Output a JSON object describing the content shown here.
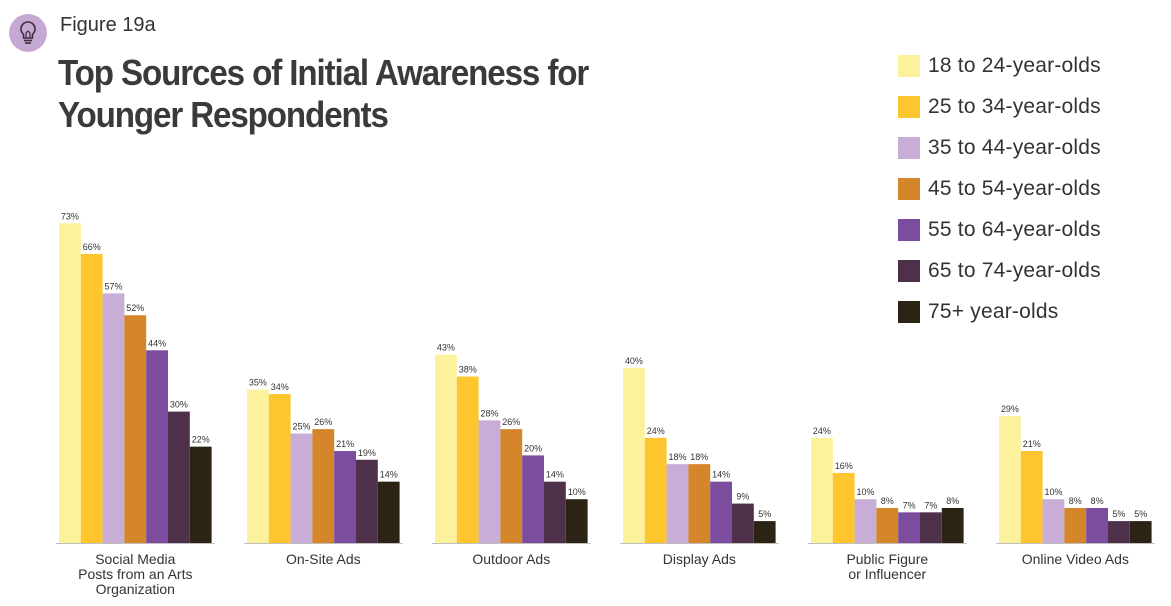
{
  "figure_label": "Figure 19a",
  "icon": "lightbulb-icon",
  "colors": {
    "icon_circle": "#c6a9d3",
    "series": [
      "#fdf29c",
      "#fec62e",
      "#c8aed6",
      "#d5862b",
      "#7c4d9e",
      "#4f304b",
      "#2b2314"
    ],
    "axis": "#bfbfbf"
  },
  "chart_data": {
    "type": "bar",
    "title": "Top Sources of Initial Awareness for Younger Respondents",
    "title_lines": [
      "Top Sources of Initial Awareness for",
      "Younger Respondents"
    ],
    "categories": [
      [
        "Social Media",
        "Posts from an Arts",
        "Organization"
      ],
      [
        "On-Site Ads"
      ],
      [
        "Outdoor Ads"
      ],
      [
        "Display Ads"
      ],
      [
        "Public Figure",
        "or Influencer"
      ],
      [
        "Online Video Ads"
      ]
    ],
    "series": [
      {
        "name": "18 to 24-year-olds",
        "values": [
          73,
          35,
          43,
          40,
          24,
          29
        ]
      },
      {
        "name": "25 to 34-year-olds",
        "values": [
          66,
          34,
          38,
          24,
          16,
          21
        ]
      },
      {
        "name": "35 to 44-year-olds",
        "values": [
          57,
          25,
          28,
          18,
          10,
          10
        ]
      },
      {
        "name": "45 to 54-year-olds",
        "values": [
          52,
          26,
          26,
          18,
          8,
          8
        ]
      },
      {
        "name": "55 to 64-year-olds",
        "values": [
          44,
          21,
          20,
          14,
          7,
          8
        ]
      },
      {
        "name": "65 to 74-year-olds",
        "values": [
          30,
          19,
          14,
          9,
          7,
          5
        ]
      },
      {
        "name": "75+ year-olds",
        "values": [
          22,
          14,
          10,
          5,
          8,
          5
        ]
      }
    ],
    "value_suffix": "%",
    "xlabel": "",
    "ylabel": "",
    "ylim": [
      0,
      75
    ],
    "grid": false,
    "legend_position": "top-right"
  }
}
